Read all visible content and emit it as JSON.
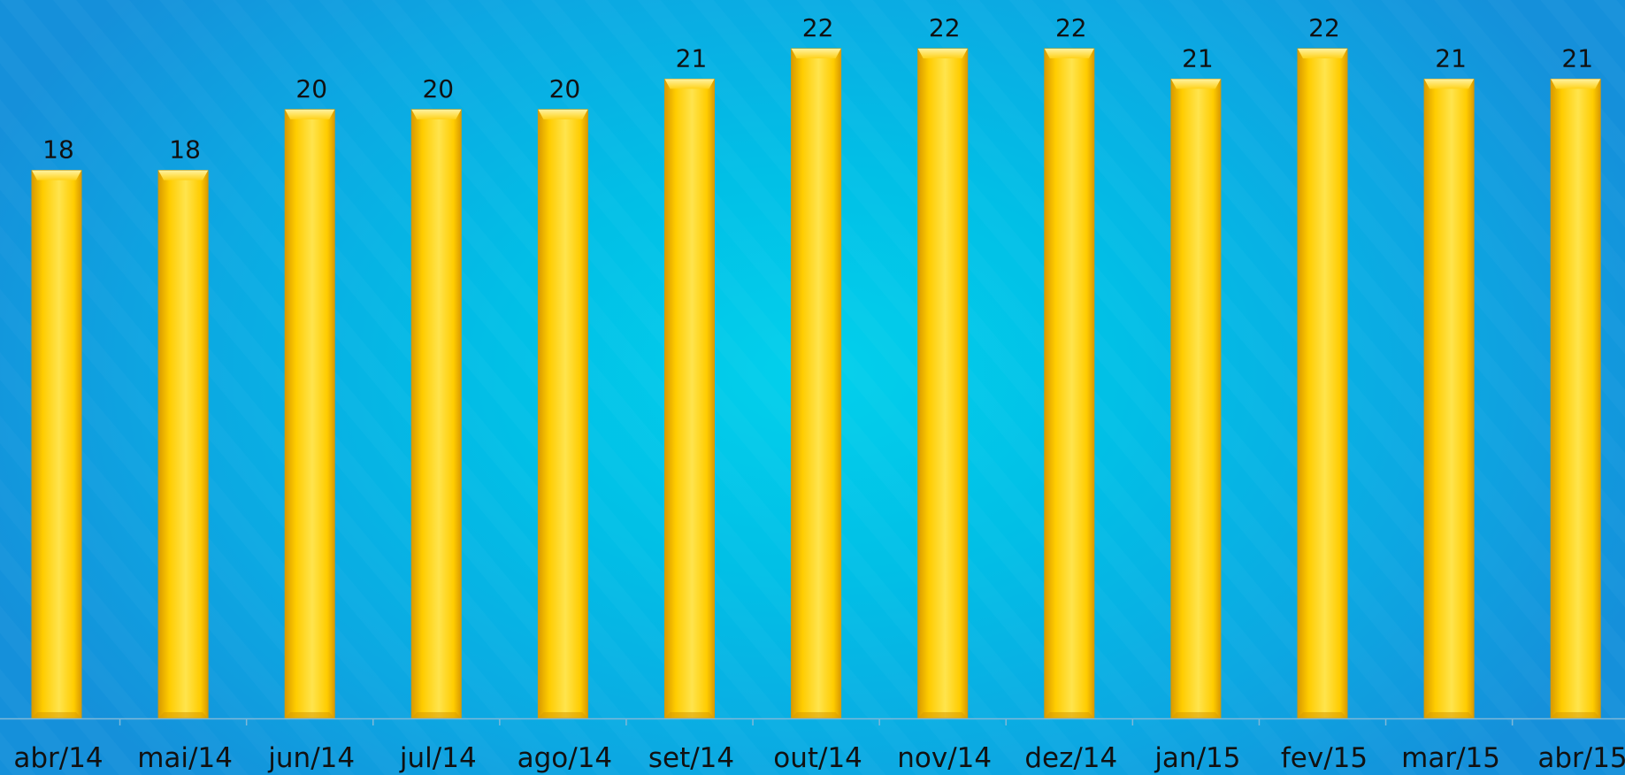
{
  "chart_data": {
    "type": "bar",
    "title": "",
    "xlabel": "",
    "ylabel": "",
    "categories": [
      "abr/14",
      "mai/14",
      "jun/14",
      "jul/14",
      "ago/14",
      "set/14",
      "out/14",
      "nov/14",
      "dez/14",
      "jan/15",
      "fev/15",
      "mar/15",
      "abr/15"
    ],
    "values": [
      18,
      18,
      20,
      20,
      20,
      21,
      22,
      22,
      22,
      21,
      22,
      21,
      21
    ],
    "ylim": [
      0,
      22
    ],
    "grid": false,
    "legend": "none",
    "data_labels": true,
    "colors": {
      "bar": "#ffcc00",
      "bar_light": "#ffe44d",
      "bar_dark": "#d99a00",
      "background": "#01c4e8",
      "axis": "#7fb8d8",
      "text": "#111111"
    }
  }
}
